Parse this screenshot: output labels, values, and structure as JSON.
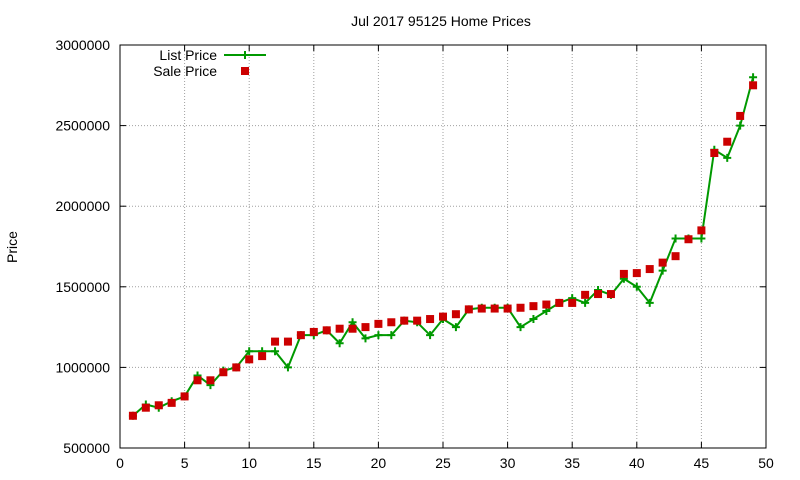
{
  "chart_data": {
    "type": "line",
    "title": "Jul 2017 95125 Home Prices",
    "xlabel": "",
    "ylabel": "Price",
    "xlim": [
      0,
      50
    ],
    "ylim": [
      500000,
      3000000
    ],
    "x_ticks": [
      0,
      5,
      10,
      15,
      20,
      25,
      30,
      35,
      40,
      45,
      50
    ],
    "y_ticks": [
      500000,
      1000000,
      1500000,
      2000000,
      2500000,
      3000000
    ],
    "grid": true,
    "legend_position": "top-left",
    "x": [
      1,
      2,
      3,
      4,
      5,
      6,
      7,
      8,
      9,
      10,
      11,
      12,
      13,
      14,
      15,
      16,
      17,
      18,
      19,
      20,
      21,
      22,
      23,
      24,
      25,
      26,
      27,
      28,
      29,
      30,
      31,
      32,
      33,
      34,
      35,
      36,
      37,
      38,
      39,
      40,
      41,
      42,
      43,
      44,
      45,
      46,
      47,
      48,
      49
    ],
    "series": [
      {
        "name": "List Price",
        "style": "linespoints",
        "color": "#009900",
        "values": [
          700000,
          770000,
          750000,
          790000,
          820000,
          950000,
          890000,
          980000,
          1000000,
          1100000,
          1100000,
          1100000,
          1000000,
          1200000,
          1200000,
          1230000,
          1150000,
          1280000,
          1180000,
          1200000,
          1200000,
          1290000,
          1280000,
          1200000,
          1300000,
          1250000,
          1360000,
          1370000,
          1370000,
          1370000,
          1250000,
          1300000,
          1350000,
          1400000,
          1430000,
          1400000,
          1480000,
          1450000,
          1550000,
          1500000,
          1400000,
          1600000,
          1800000,
          1800000,
          1800000,
          2350000,
          2300000,
          2500000,
          2800000
        ]
      },
      {
        "name": "Sale Price",
        "style": "points",
        "color": "#cc0000",
        "values": [
          700000,
          750000,
          765000,
          780000,
          820000,
          920000,
          920000,
          970000,
          1000000,
          1050000,
          1070000,
          1160000,
          1160000,
          1200000,
          1220000,
          1230000,
          1240000,
          1240000,
          1250000,
          1270000,
          1280000,
          1290000,
          1290000,
          1300000,
          1315000,
          1330000,
          1360000,
          1365000,
          1365000,
          1365000,
          1370000,
          1380000,
          1390000,
          1400000,
          1400000,
          1450000,
          1455000,
          1455000,
          1580000,
          1585000,
          1610000,
          1650000,
          1690000,
          1795000,
          1850000,
          2330000,
          2400000,
          2560000,
          2750000
        ]
      }
    ]
  }
}
